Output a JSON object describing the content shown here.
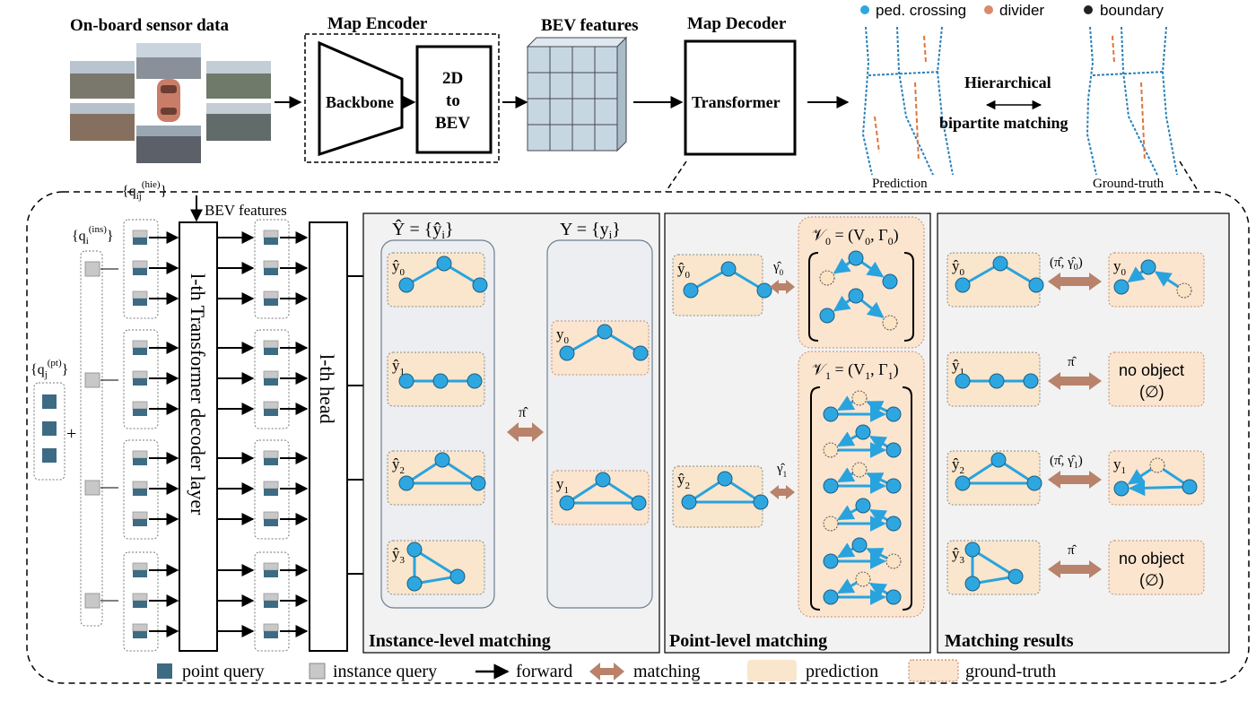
{
  "top": {
    "sensor_title": "On-board sensor data",
    "encoder_title": "Map Encoder",
    "backbone": "Backbone",
    "to_bev_1": "2D",
    "to_bev_2": "to",
    "to_bev_3": "BEV",
    "bev_title": "BEV features",
    "decoder_title": "Map Decoder",
    "transformer": "Transformer",
    "legend_ped": "ped. crossing",
    "legend_divider": "divider",
    "legend_boundary": "boundary",
    "hier_1": "Hierarchical",
    "hier_2": "bipartite matching",
    "prediction_label": "Prediction",
    "groundtruth_label": "Ground-truth"
  },
  "decoder": {
    "q_pt": "{q",
    "q_pt_sub": "j",
    "q_pt_sup": "(pt)",
    "q_ins": "{q",
    "q_ins_sub": "i",
    "q_ins_sup": "(ins)",
    "q_hie": "{q",
    "q_hie_sub": "ij",
    "q_hie_sup": "(hie)",
    "plus": "+",
    "bev_features": "BEV features",
    "layer_label": "l-th Transformer decoder layer",
    "head_label": "l-th head"
  },
  "instance_panel": {
    "title": "Instance-level matching",
    "pred_set": "Ŷ = {ŷ",
    "pred_set_sub": "i",
    "gt_set": "Y = {y",
    "gt_set_sub": "i",
    "pred_items": [
      "ŷ",
      "ŷ",
      "ŷ",
      "ŷ"
    ],
    "pred_subs": [
      "0",
      "1",
      "2",
      "3"
    ],
    "gt_items": [
      "y",
      "y"
    ],
    "gt_subs": [
      "0",
      "1"
    ],
    "match_label": "π̂"
  },
  "point_panel": {
    "title": "Point-level matching",
    "v0": "𝒱",
    "v0_sub": "0",
    "v0_rhs": "= (V",
    "v0_rhs_sub": "0",
    "v0_gamma": ", Γ",
    "v0_gamma_sub": "0",
    "v1": "𝒱",
    "v1_sub": "1",
    "v1_rhs": "= (V",
    "v1_rhs_sub": "1",
    "v1_gamma": ", Γ",
    "v1_gamma_sub": "1",
    "gamma0": "γ̂",
    "gamma0_sub": "0",
    "gamma1": "γ̂",
    "gamma1_sub": "1",
    "pred0": "ŷ",
    "pred0_sub": "0",
    "pred2": "ŷ",
    "pred2_sub": "2"
  },
  "results_panel": {
    "title": "Matching results",
    "rows": [
      {
        "pred": "ŷ",
        "pred_sub": "0",
        "match": "(π̂, γ̂",
        "match_sub": "0",
        "gt": "y",
        "gt_sub": "0"
      },
      {
        "pred": "ŷ",
        "pred_sub": "1",
        "match": "π̂",
        "match_sub": "",
        "gt1": "no object",
        "gt2": "(∅)"
      },
      {
        "pred": "ŷ",
        "pred_sub": "2",
        "match": "(π̂, γ̂",
        "match_sub": "1",
        "gt": "y",
        "gt_sub": "1"
      },
      {
        "pred": "ŷ",
        "pred_sub": "3",
        "match": "π̂",
        "match_sub": "",
        "gt1": "no object",
        "gt2": "(∅)"
      }
    ]
  },
  "legend": {
    "point_query": "point query",
    "instance_query": "instance query",
    "forward": "forward",
    "matching": "matching",
    "prediction": "prediction",
    "ground_truth": "ground-truth"
  },
  "colors": {
    "pred_fill": "#f9e6cc",
    "gt_fill": "#fbe5cf",
    "node": "#2ea7e0",
    "edge": "#29a3de",
    "panel_bg": "#f2f2f2",
    "match_arrow": "#b9826a",
    "point_query": "#3d6b84",
    "instance_query": "#c8c8c8"
  }
}
